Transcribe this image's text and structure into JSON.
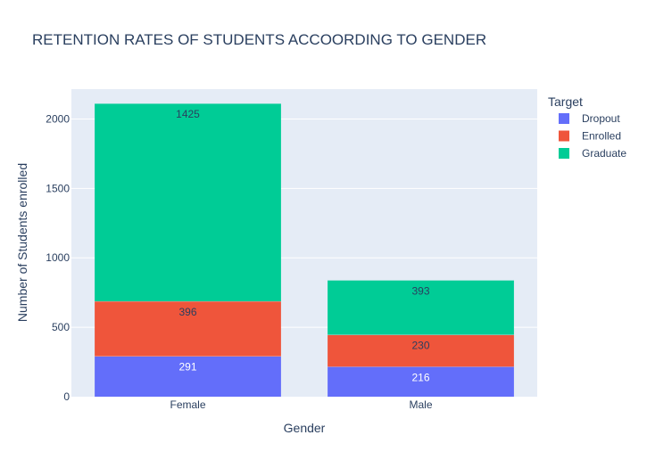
{
  "chart_data": {
    "type": "bar",
    "stacked": true,
    "title": "RETENTION RATES OF STUDENTS ACCOORDING TO GENDER",
    "xlabel": "Gender",
    "ylabel": "Number of Students enrolled",
    "categories": [
      "Female",
      "Male"
    ],
    "ylim": [
      0,
      2215
    ],
    "yticks": [
      0,
      500,
      1000,
      1500,
      2000
    ],
    "grid": true,
    "legend_title": "Target",
    "legend_position": "top-right",
    "series": [
      {
        "name": "Dropout",
        "values": [
          291,
          216
        ],
        "color": "#636efa",
        "label_color": "#ffffff"
      },
      {
        "name": "Enrolled",
        "values": [
          396,
          230
        ],
        "color": "#ef553b",
        "label_color": "#2a3f5f"
      },
      {
        "name": "Graduate",
        "values": [
          1425,
          393
        ],
        "color": "#00cc96",
        "label_color": "#2a3f5f"
      }
    ],
    "plot_bgcolor": "#e5ecf6",
    "gridcolor": "#ffffff"
  }
}
